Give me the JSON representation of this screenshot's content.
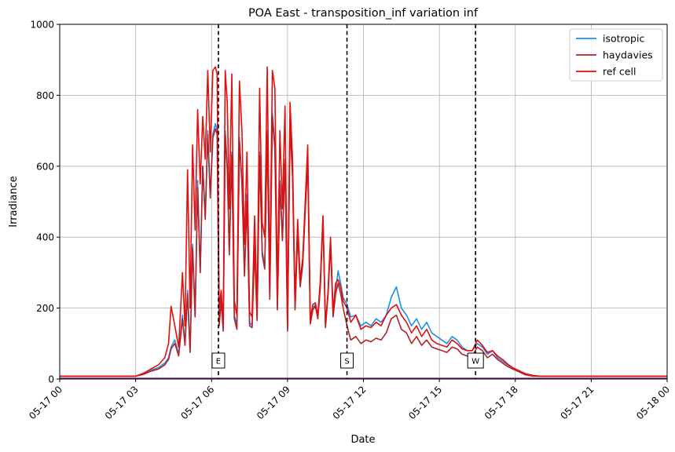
{
  "chart_data": {
    "type": "line",
    "title": "POA East - transposition_inf variation inf",
    "xlabel": "Date",
    "ylabel": "Irradiance",
    "xlim": [
      "05-17 00:00",
      "05-18 00:00"
    ],
    "ylim": [
      0,
      1000
    ],
    "grid": true,
    "legend_position": "top-right",
    "x_ticks": [
      {
        "label": "05-17 00",
        "hour": 0
      },
      {
        "label": "05-17 03",
        "hour": 3
      },
      {
        "label": "05-17 06",
        "hour": 6
      },
      {
        "label": "05-17 09",
        "hour": 9
      },
      {
        "label": "05-17 12",
        "hour": 12
      },
      {
        "label": "05-17 15",
        "hour": 15
      },
      {
        "label": "05-17 18",
        "hour": 18
      },
      {
        "label": "05-17 21",
        "hour": 21
      },
      {
        "label": "05-18 00",
        "hour": 24
      }
    ],
    "y_ticks": [
      0,
      200,
      400,
      600,
      800,
      1000
    ],
    "vertical_markers": [
      {
        "label": "E",
        "hour": 6.27
      },
      {
        "label": "S",
        "hour": 11.35
      },
      {
        "label": "W",
        "hour": 16.43
      }
    ],
    "x_hours": [
      0,
      3.0,
      3.3,
      3.6,
      3.9,
      4.15,
      4.3,
      4.4,
      4.55,
      4.7,
      4.85,
      4.95,
      5.05,
      5.15,
      5.25,
      5.35,
      5.45,
      5.55,
      5.65,
      5.75,
      5.85,
      5.95,
      6.05,
      6.15,
      6.22,
      6.3,
      6.38,
      6.46,
      6.54,
      6.62,
      6.7,
      6.8,
      6.9,
      7.0,
      7.1,
      7.2,
      7.3,
      7.4,
      7.5,
      7.6,
      7.7,
      7.8,
      7.9,
      8.0,
      8.1,
      8.2,
      8.3,
      8.4,
      8.5,
      8.6,
      8.7,
      8.8,
      8.9,
      9.0,
      9.1,
      9.2,
      9.3,
      9.4,
      9.5,
      9.6,
      9.7,
      9.8,
      9.9,
      10.0,
      10.1,
      10.2,
      10.3,
      10.4,
      10.5,
      10.6,
      10.7,
      10.8,
      10.9,
      11.0,
      11.1,
      11.2,
      11.35,
      11.5,
      11.7,
      11.9,
      12.1,
      12.3,
      12.5,
      12.7,
      12.9,
      13.1,
      13.3,
      13.5,
      13.7,
      13.9,
      14.1,
      14.3,
      14.5,
      14.7,
      14.9,
      15.1,
      15.3,
      15.5,
      15.7,
      15.9,
      16.1,
      16.3,
      16.5,
      16.7,
      16.9,
      17.1,
      17.3,
      17.5,
      17.7,
      17.9,
      18.1,
      18.4,
      18.7,
      19.0,
      24
    ],
    "series": [
      {
        "name": "isotropic",
        "color": "#1f8fe6",
        "values": [
          8,
          8,
          15,
          25,
          32,
          45,
          60,
          90,
          110,
          70,
          180,
          100,
          250,
          80,
          380,
          180,
          560,
          300,
          600,
          460,
          700,
          520,
          690,
          720,
          700,
          160,
          230,
          140,
          700,
          600,
          360,
          640,
          180,
          150,
          680,
          560,
          300,
          520,
          160,
          150,
          380,
          170,
          640,
          360,
          320,
          700,
          230,
          750,
          660,
          200,
          560,
          400,
          620,
          140,
          720,
          580,
          200,
          420,
          270,
          330,
          480,
          620,
          160,
          200,
          210,
          175,
          270,
          460,
          150,
          240,
          390,
          180,
          250,
          305,
          270,
          230,
          210,
          175,
          180,
          150,
          160,
          150,
          170,
          160,
          180,
          230,
          260,
          200,
          180,
          150,
          170,
          140,
          160,
          130,
          120,
          110,
          100,
          120,
          110,
          90,
          80,
          80,
          100,
          90,
          70,
          80,
          60,
          50,
          40,
          30,
          25,
          15,
          10,
          8,
          8
        ]
      },
      {
        "name": "haydavies",
        "color": "#b22226",
        "values": [
          8,
          8,
          13,
          22,
          28,
          40,
          55,
          85,
          100,
          65,
          170,
          95,
          240,
          75,
          370,
          175,
          540,
          300,
          600,
          450,
          690,
          510,
          680,
          705,
          690,
          150,
          220,
          135,
          690,
          590,
          350,
          630,
          170,
          140,
          670,
          550,
          290,
          500,
          150,
          145,
          370,
          165,
          630,
          350,
          310,
          690,
          225,
          740,
          650,
          195,
          550,
          390,
          610,
          135,
          710,
          570,
          195,
          410,
          260,
          320,
          470,
          610,
          155,
          195,
          205,
          170,
          260,
          450,
          145,
          235,
          380,
          175,
          240,
          270,
          240,
          200,
          150,
          110,
          120,
          100,
          110,
          105,
          115,
          110,
          130,
          170,
          180,
          140,
          130,
          100,
          120,
          95,
          110,
          90,
          85,
          80,
          75,
          90,
          85,
          70,
          65,
          65,
          90,
          80,
          60,
          70,
          55,
          45,
          35,
          28,
          22,
          12,
          8,
          8,
          8
        ]
      },
      {
        "name": "ref cell",
        "color": "#e60d0d",
        "values": [
          8,
          8,
          16,
          28,
          40,
          60,
          100,
          205,
          150,
          90,
          300,
          150,
          590,
          200,
          660,
          420,
          760,
          550,
          740,
          620,
          870,
          640,
          870,
          880,
          860,
          200,
          250,
          160,
          870,
          780,
          480,
          860,
          220,
          180,
          840,
          700,
          380,
          640,
          190,
          175,
          460,
          200,
          820,
          440,
          400,
          880,
          270,
          870,
          820,
          240,
          700,
          480,
          770,
          150,
          780,
          620,
          220,
          450,
          280,
          340,
          500,
          660,
          170,
          210,
          215,
          180,
          280,
          460,
          155,
          245,
          400,
          190,
          270,
          280,
          260,
          220,
          200,
          160,
          180,
          140,
          150,
          145,
          160,
          150,
          180,
          200,
          210,
          180,
          160,
          130,
          150,
          120,
          140,
          110,
          100,
          95,
          90,
          110,
          100,
          85,
          80,
          80,
          110,
          95,
          75,
          80,
          65,
          55,
          42,
          32,
          25,
          15,
          10,
          8,
          8
        ]
      }
    ]
  }
}
